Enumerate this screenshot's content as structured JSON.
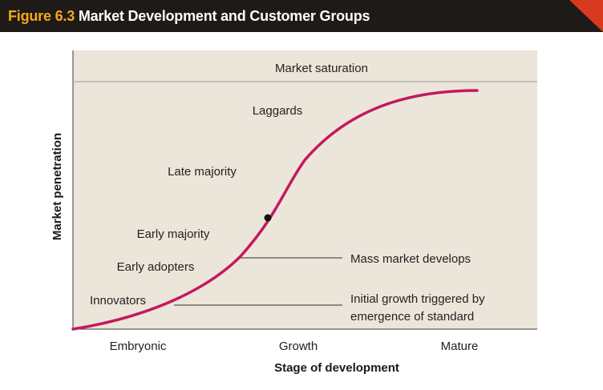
{
  "figure": {
    "number": "Figure 6.3",
    "title": "Market Development and Customer Groups",
    "accent_color": "#f4a71e",
    "bar_color": "#1e1a17"
  },
  "chart_data": {
    "type": "line",
    "xlabel": "Stage of development",
    "ylabel": "Market penetration",
    "x_categories": [
      "Embryonic",
      "Growth",
      "Mature"
    ],
    "saturation_label": "Market saturation",
    "customer_groups": [
      "Innovators",
      "Early adopters",
      "Early majority",
      "Late majority",
      "Laggards"
    ],
    "annotations": [
      {
        "id": "mass-market",
        "text_lines": [
          "Mass market develops"
        ]
      },
      {
        "id": "initial-growth",
        "text_lines": [
          "Initial growth triggered by",
          "emergence of standard"
        ]
      }
    ],
    "curve_color": "#c4185f",
    "plot_background": "#ebe6d9",
    "grid": false
  }
}
